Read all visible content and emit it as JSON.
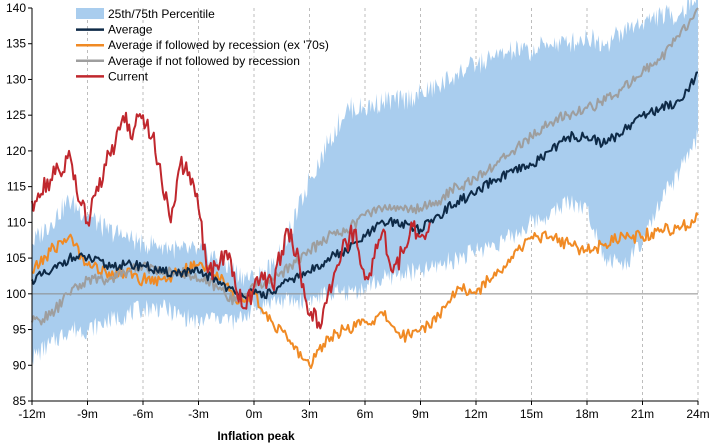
{
  "chart_data": {
    "type": "line",
    "xlabel": "Inflation peak",
    "ylabel": "",
    "x_range_months": [
      -12,
      24
    ],
    "ylim": [
      85,
      140
    ],
    "x_ticks": [
      {
        "value": -12,
        "label": "-12m"
      },
      {
        "value": -9,
        "label": "-9m"
      },
      {
        "value": -6,
        "label": "-6m"
      },
      {
        "value": -3,
        "label": "-3m"
      },
      {
        "value": 0,
        "label": "0m"
      },
      {
        "value": 3,
        "label": "3m"
      },
      {
        "value": 6,
        "label": "6m"
      },
      {
        "value": 9,
        "label": "9m"
      },
      {
        "value": 12,
        "label": "12m"
      },
      {
        "value": 15,
        "label": "15m"
      },
      {
        "value": 18,
        "label": "18m"
      },
      {
        "value": 21,
        "label": "21m"
      },
      {
        "value": 24,
        "label": "24m"
      }
    ],
    "y_ticks": [
      85,
      90,
      95,
      100,
      105,
      110,
      115,
      120,
      125,
      130,
      135,
      140
    ],
    "reference_line": 100,
    "vertical_gridlines": "dashed at each x tick",
    "legend_position": "top-left",
    "band": {
      "name": "25th/75th Percentile",
      "color": "#a9cdee",
      "x": [
        -12,
        -11,
        -10,
        -9,
        -8,
        -7,
        -6,
        -5,
        -4,
        -3,
        -2,
        -1,
        0,
        1,
        2,
        3,
        4,
        5,
        6,
        7,
        8,
        9,
        10,
        11,
        12,
        13,
        14,
        15,
        16,
        17,
        18,
        19,
        20,
        21,
        22,
        23,
        24
      ],
      "lower": [
        91,
        93,
        95,
        95,
        96,
        97,
        98,
        98,
        97,
        96,
        97,
        96,
        98,
        99,
        99,
        99,
        100,
        100,
        101,
        102,
        103,
        103,
        104,
        105,
        106,
        107,
        108,
        110,
        111,
        113,
        112,
        105,
        104,
        107,
        113,
        117,
        122
      ],
      "upper": [
        107,
        110,
        113,
        111,
        109,
        108,
        107,
        107,
        106,
        106,
        105,
        103,
        102,
        104,
        109,
        116,
        121,
        126,
        126,
        127,
        127,
        128,
        129,
        131,
        132,
        133,
        134,
        134,
        135,
        135,
        136,
        135,
        137,
        138,
        139,
        139,
        142
      ]
    },
    "series": [
      {
        "name": "Average",
        "color": "#0e2a47",
        "x": [
          -12,
          -11,
          -10,
          -9,
          -8,
          -7,
          -6,
          -5,
          -4,
          -3,
          -2,
          -1,
          0,
          1,
          2,
          3,
          4,
          5,
          6,
          7,
          8,
          9,
          10,
          11,
          12,
          13,
          14,
          15,
          16,
          17,
          18,
          19,
          20,
          21,
          22,
          23,
          24
        ],
        "values": [
          102,
          103,
          105,
          105,
          104,
          104,
          104,
          103,
          103,
          103,
          102,
          100,
          100,
          100,
          102,
          103,
          105,
          106,
          108,
          110,
          110,
          109,
          111,
          113,
          114,
          116,
          117,
          118,
          120,
          122,
          122,
          121,
          123,
          125,
          126,
          127,
          131
        ]
      },
      {
        "name": "Average if followed by recession (ex '70s)",
        "color": "#f08a24",
        "x": [
          -12,
          -11,
          -10,
          -9,
          -8,
          -7,
          -6,
          -5,
          -4,
          -3,
          -2,
          -1,
          0,
          1,
          2,
          3,
          4,
          5,
          6,
          7,
          8,
          9,
          10,
          11,
          12,
          13,
          14,
          15,
          16,
          17,
          18,
          19,
          20,
          21,
          22,
          23,
          24
        ],
        "values": [
          103,
          106,
          108,
          104,
          103,
          103,
          102,
          102,
          103,
          104,
          103,
          99,
          100,
          96,
          93,
          90,
          94,
          95,
          96,
          97,
          94,
          95,
          97,
          101,
          100,
          103,
          105,
          108,
          108,
          107,
          106,
          107,
          108,
          108,
          109,
          109,
          111
        ]
      },
      {
        "name": "Average if not followed by recession",
        "color": "#9e9e9e",
        "x": [
          -12,
          -11,
          -10,
          -9,
          -8,
          -7,
          -6,
          -5,
          -4,
          -3,
          -2,
          -1,
          0,
          1,
          2,
          3,
          4,
          5,
          6,
          7,
          8,
          9,
          10,
          11,
          12,
          13,
          14,
          15,
          16,
          17,
          18,
          19,
          20,
          21,
          22,
          23,
          24
        ],
        "values": [
          96,
          97,
          100,
          102,
          102,
          103,
          104,
          103,
          103,
          102,
          101,
          99,
          101,
          102,
          104,
          106,
          108,
          109,
          111,
          112,
          112,
          112,
          113,
          115,
          116,
          118,
          120,
          122,
          124,
          125,
          126,
          127,
          129,
          131,
          133,
          136,
          140
        ]
      },
      {
        "name": "Current",
        "color": "#c0272d",
        "x": [
          -12,
          -11.5,
          -11,
          -10.5,
          -10,
          -9.5,
          -9,
          -8.5,
          -8,
          -7.5,
          -7,
          -6.5,
          -6,
          -5.5,
          -5,
          -4.5,
          -4,
          -3.5,
          -3,
          -2.5,
          -2,
          -1.5,
          -1,
          -0.5,
          0,
          0.5,
          1,
          1.5,
          2,
          2.5,
          3,
          3.5,
          4,
          4.5,
          5,
          5.5,
          6,
          6.5,
          7,
          7.5,
          8,
          8.5,
          9,
          9.5
        ],
        "values": [
          113,
          114,
          116,
          117,
          120,
          113,
          110,
          115,
          118,
          121,
          124,
          123,
          125,
          122,
          116,
          110,
          118,
          117,
          112,
          103,
          104,
          106,
          101,
          98,
          101,
          102,
          101,
          106,
          109,
          103,
          97,
          96,
          100,
          104,
          107,
          109,
          102,
          105,
          109,
          103,
          106,
          110,
          108,
          110
        ]
      }
    ]
  }
}
